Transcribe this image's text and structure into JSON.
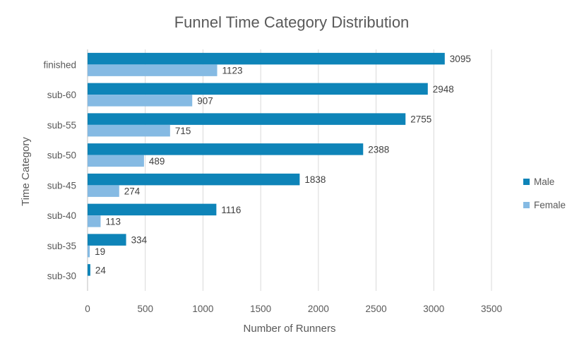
{
  "chart_data": {
    "type": "bar",
    "orientation": "horizontal",
    "title": "Funnel Time Category Distribution",
    "xlabel": "Number of Runners",
    "ylabel": "Time Category",
    "categories": [
      "finished",
      "sub-60",
      "sub-55",
      "sub-50",
      "sub-45",
      "sub-40",
      "sub-35",
      "sub-30"
    ],
    "series": [
      {
        "name": "Male",
        "color": "#0E84B8",
        "values": [
          3095,
          2948,
          2755,
          2388,
          1838,
          1116,
          334,
          24
        ]
      },
      {
        "name": "Female",
        "color": "#85BAE3",
        "values": [
          1123,
          907,
          715,
          489,
          274,
          113,
          19,
          null
        ]
      }
    ],
    "xlim": [
      0,
      3500
    ],
    "xticks": [
      "0",
      "500",
      "1000",
      "1500",
      "2000",
      "2500",
      "3000",
      "3500"
    ],
    "grid": true,
    "legend_position": "right",
    "data_labels": true
  }
}
